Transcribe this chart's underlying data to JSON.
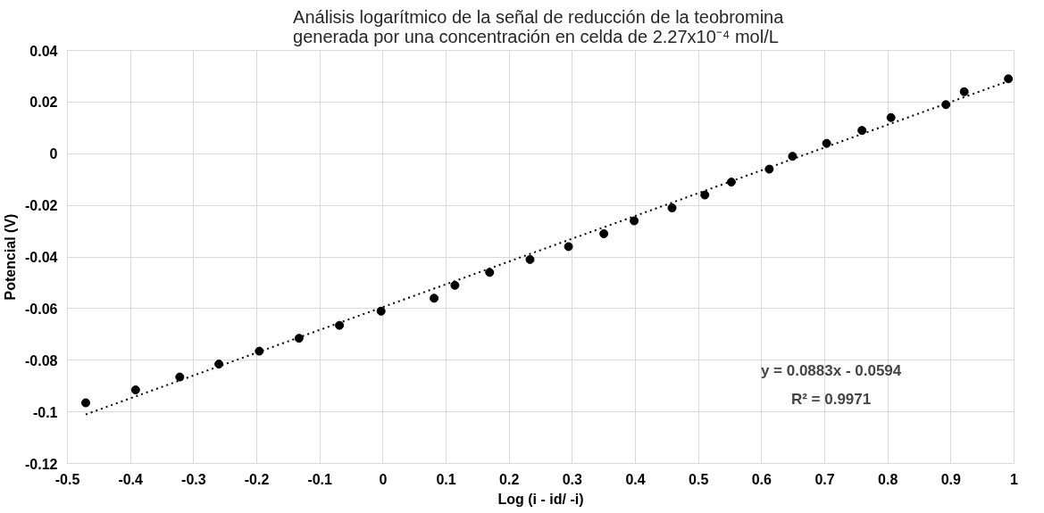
{
  "chart_data": {
    "type": "scatter",
    "title": "Análisis logarítmico de la señal de reducción  de la teobromina generada por una concentración en celda de 2.27x10⁻⁴ mol/L",
    "xlabel": "Log (i - id/ -i)",
    "ylabel": "Potencial (V)",
    "x": [
      -0.471,
      -0.392,
      -0.322,
      -0.26,
      -0.196,
      -0.133,
      -0.069,
      -0.003,
      0.081,
      0.114,
      0.169,
      0.233,
      0.294,
      0.35,
      0.398,
      0.458,
      0.51,
      0.552,
      0.612,
      0.649,
      0.703,
      0.759,
      0.805,
      0.892,
      0.921,
      0.991
    ],
    "series": [
      {
        "color": "#000000",
        "marker": "circle",
        "values": [
          -0.0965,
          -0.0915,
          -0.0865,
          -0.0815,
          -0.0765,
          -0.0715,
          -0.0665,
          -0.061,
          -0.056,
          -0.051,
          -0.046,
          -0.041,
          -0.036,
          -0.031,
          -0.026,
          -0.021,
          -0.016,
          -0.011,
          -0.006,
          -0.001,
          0.004,
          0.009,
          0.014,
          0.019,
          0.024,
          0.029
        ]
      },
      {
        "type": "line",
        "color": "#000000",
        "line_style": "dotted",
        "marker": "none",
        "x": [
          -0.471,
          0.991
        ],
        "values": [
          -0.101,
          0.0281
        ]
      }
    ],
    "annotations": [
      "y = 0.0883x - 0.0594",
      "R² = 0.9971"
    ],
    "xlim": [
      -0.5,
      1
    ],
    "ylim": [
      -0.12,
      0.04
    ],
    "xticks": [
      -0.5,
      -0.4,
      -0.3,
      -0.2,
      -0.1,
      0,
      0.1,
      0.2,
      0.3,
      0.4,
      0.5,
      0.6,
      0.7,
      0.8,
      0.9,
      1
    ],
    "yticks": [
      -0.12,
      -0.1,
      -0.08,
      -0.06,
      -0.04,
      -0.02,
      0,
      0.02,
      0.04
    ],
    "grid": true
  }
}
